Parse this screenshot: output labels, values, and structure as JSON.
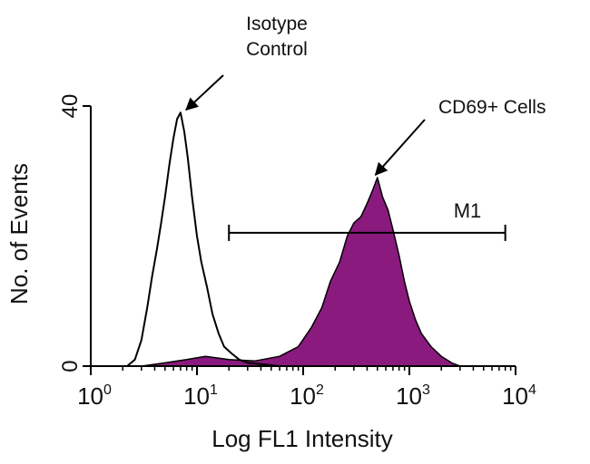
{
  "chart_data": {
    "type": "area",
    "x_scale": "log",
    "xlim": [
      1,
      10000
    ],
    "ylim": [
      0,
      40
    ],
    "xlabel": "Log FL1 Intensity",
    "ylabel": "No. of Events",
    "grid": false,
    "xticks": [
      {
        "base": "10",
        "exp": "0",
        "value": 1
      },
      {
        "base": "10",
        "exp": "1",
        "value": 10
      },
      {
        "base": "10",
        "exp": "2",
        "value": 100
      },
      {
        "base": "10",
        "exp": "3",
        "value": 1000
      },
      {
        "base": "10",
        "exp": "4",
        "value": 10000
      }
    ],
    "yticks": [
      {
        "label": "0",
        "value": 0
      },
      {
        "label": "40",
        "value": 40
      }
    ],
    "annotations": [
      {
        "label": "Isotype Control",
        "lines": [
          "Isotype",
          "Control"
        ],
        "points_to": [
          6.5,
          39
        ]
      },
      {
        "label": "CD69+ Cells",
        "lines": [
          "CD69+ Cells"
        ],
        "points_to": [
          480,
          29
        ]
      }
    ],
    "marker": {
      "label": "M1",
      "x_start": 20,
      "x_end": 8000,
      "y": 20.5
    },
    "series": [
      {
        "name": "Isotype Control",
        "fill": "none",
        "x": [
          2.2,
          2.6,
          3.0,
          3.4,
          3.8,
          4.2,
          4.6,
          5.0,
          5.5,
          6.0,
          6.5,
          7.0,
          7.6,
          8.2,
          9.0,
          10,
          11,
          12.5,
          14,
          16,
          18,
          21,
          25,
          30,
          40,
          60
        ],
        "y": [
          0,
          1,
          4,
          9,
          14,
          18,
          22,
          26,
          31,
          35,
          38,
          39,
          36,
          32,
          26,
          20,
          16,
          12,
          8,
          5,
          3,
          2,
          1,
          0.5,
          0.3,
          0
        ]
      },
      {
        "name": "CD69+ Cells",
        "fill": "#8a1a7e",
        "x": [
          3,
          5,
          8,
          12,
          20,
          35,
          60,
          90,
          120,
          150,
          180,
          220,
          260,
          300,
          350,
          400,
          450,
          500,
          560,
          630,
          700,
          800,
          900,
          1000,
          1150,
          1300,
          1600,
          2000,
          2500,
          3000
        ],
        "y": [
          0,
          0.5,
          1,
          1.5,
          1,
          0.8,
          1.5,
          3,
          6,
          9,
          13,
          16,
          20,
          22,
          23,
          25,
          27,
          29,
          26,
          24,
          21,
          17,
          13,
          10,
          7,
          5,
          3,
          1.5,
          0.5,
          0
        ]
      }
    ]
  }
}
